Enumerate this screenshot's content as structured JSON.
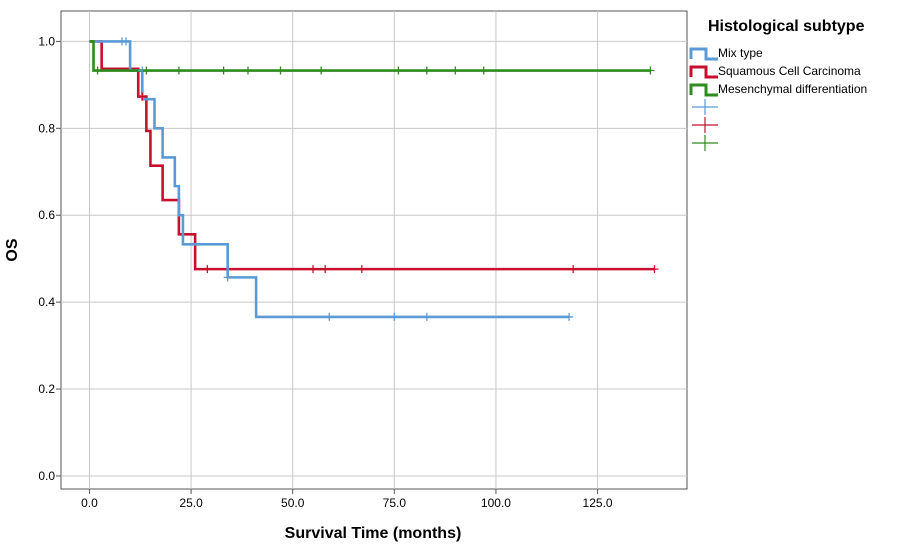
{
  "chart_data": {
    "type": "line",
    "xlabel": "Survival Time (months)",
    "ylabel": "OS",
    "xlim": [
      -7,
      147
    ],
    "ylim": [
      -0.03,
      1.07
    ],
    "xticks": [
      0,
      25,
      50,
      75,
      100,
      125
    ],
    "xtick_labels": [
      "0.0",
      "25.0",
      "50.0",
      "75.0",
      "100.0",
      "125.0"
    ],
    "yticks": [
      0,
      0.2,
      0.4,
      0.6,
      0.8,
      1.0
    ],
    "ytick_labels": [
      "0.0",
      "0.2",
      "0.4",
      "0.6",
      "0.8",
      "1.0"
    ],
    "grid": true,
    "legend_title": "Histological subtype",
    "legend_position": "top-right",
    "series": [
      {
        "name": "Mix type",
        "color": "#5b9bd5",
        "steps": [
          [
            0,
            1.0
          ],
          [
            10,
            0.933
          ],
          [
            13,
            0.867
          ],
          [
            16,
            0.8
          ],
          [
            18,
            0.733
          ],
          [
            21,
            0.667
          ],
          [
            22,
            0.6
          ],
          [
            23,
            0.533
          ],
          [
            34,
            0.457
          ],
          [
            41,
            0.366
          ],
          [
            118,
            0.366
          ]
        ],
        "censored": [
          [
            8,
            1.0
          ],
          [
            9,
            1.0
          ],
          [
            13,
            0.933
          ],
          [
            34,
            0.457
          ],
          [
            59,
            0.366
          ],
          [
            75,
            0.366
          ],
          [
            83,
            0.366
          ],
          [
            118,
            0.366
          ]
        ]
      },
      {
        "name": "Squamous Cell Carcinoma",
        "color": "#c8102e",
        "steps": [
          [
            0,
            1.0
          ],
          [
            3,
            0.937
          ],
          [
            12,
            0.873
          ],
          [
            14,
            0.794
          ],
          [
            15,
            0.714
          ],
          [
            18,
            0.635
          ],
          [
            22,
            0.556
          ],
          [
            26,
            0.476
          ],
          [
            139,
            0.476
          ]
        ],
        "censored": [
          [
            13,
            0.873
          ],
          [
            29,
            0.476
          ],
          [
            55,
            0.476
          ],
          [
            58,
            0.476
          ],
          [
            67,
            0.476
          ],
          [
            119,
            0.476
          ],
          [
            139,
            0.476
          ]
        ]
      },
      {
        "name": "Mesenchymal differentiation",
        "color": "#2e8b1e",
        "steps": [
          [
            0,
            1.0
          ],
          [
            1,
            0.933
          ],
          [
            138,
            0.933
          ]
        ],
        "censored": [
          [
            2,
            0.933
          ],
          [
            14,
            0.933
          ],
          [
            22,
            0.933
          ],
          [
            33,
            0.933
          ],
          [
            39,
            0.933
          ],
          [
            47,
            0.933
          ],
          [
            57,
            0.933
          ],
          [
            76,
            0.933
          ],
          [
            83,
            0.933
          ],
          [
            90,
            0.933
          ],
          [
            97,
            0.933
          ],
          [
            138,
            0.933
          ]
        ]
      }
    ]
  }
}
